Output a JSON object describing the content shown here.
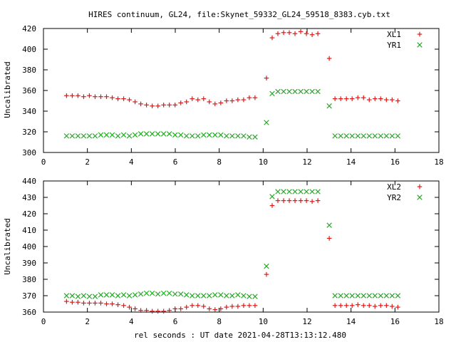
{
  "title": "HIRES continuum, GL24, file:Skynet_59332_GL24_59518_8383.cyb.txt",
  "xlabel": "rel seconds : UT date 2021-04-28T13:13:12.480",
  "colors": {
    "red": "#e01818",
    "green": "#2aa62a",
    "axis": "#000000"
  },
  "chart_data": [
    {
      "type": "scatter",
      "ylabel": "Uncalibrated",
      "xlim": [
        0,
        18
      ],
      "ylim": [
        300,
        420
      ],
      "xticks": [
        0,
        2,
        4,
        6,
        8,
        10,
        12,
        14,
        16,
        18
      ],
      "yticks": [
        300,
        320,
        340,
        360,
        380,
        400,
        420
      ],
      "legend_position": "top-right",
      "grid": false,
      "x": [
        1.05,
        1.31,
        1.57,
        1.83,
        2.09,
        2.35,
        2.61,
        2.87,
        3.13,
        3.39,
        3.65,
        3.91,
        4.17,
        4.43,
        4.69,
        4.95,
        5.21,
        5.47,
        5.73,
        5.99,
        6.25,
        6.51,
        6.77,
        7.03,
        7.29,
        7.55,
        7.81,
        8.07,
        8.33,
        8.59,
        8.85,
        9.11,
        9.37,
        9.63,
        9.89,
        10.15,
        10.41,
        10.67,
        10.93,
        11.19,
        11.45,
        11.71,
        11.97,
        12.23,
        12.49,
        12.75,
        13.01,
        13.27,
        13.53,
        13.79,
        14.05,
        14.31,
        14.57,
        14.83,
        15.09,
        15.35,
        15.61,
        15.87,
        16.13
      ],
      "series": [
        {
          "name": "XL1",
          "marker": "plus",
          "color": "#e01818",
          "values": [
            355,
            355,
            355,
            354,
            355,
            354,
            354,
            354,
            353,
            352,
            352,
            351,
            349,
            347,
            346,
            345,
            345,
            346,
            346,
            346,
            348,
            349,
            352,
            351,
            352,
            349,
            347,
            348,
            350,
            350,
            351,
            351,
            353,
            353,
            null,
            372,
            411,
            415,
            416,
            416,
            415,
            417,
            415,
            414,
            415,
            null,
            391,
            352,
            352,
            352,
            352,
            353,
            353,
            351,
            352,
            352,
            351,
            351,
            350
          ]
        },
        {
          "name": "YR1",
          "marker": "cross",
          "color": "#2aa62a",
          "values": [
            316,
            316,
            316,
            316,
            316,
            316,
            317,
            317,
            317,
            316,
            317,
            316,
            317,
            318,
            318,
            318,
            318,
            318,
            318,
            317,
            317,
            316,
            316,
            316,
            317,
            317,
            317,
            317,
            316,
            316,
            316,
            316,
            315,
            315,
            null,
            329,
            357,
            359,
            359,
            359,
            359,
            359,
            359,
            359,
            359,
            null,
            345,
            316,
            316,
            316,
            316,
            316,
            316,
            316,
            316,
            316,
            316,
            316,
            316
          ]
        }
      ]
    },
    {
      "type": "scatter",
      "ylabel": "Uncalibrated",
      "xlim": [
        0,
        18
      ],
      "ylim": [
        360,
        440
      ],
      "xticks": [
        0,
        2,
        4,
        6,
        8,
        10,
        12,
        14,
        16,
        18
      ],
      "yticks": [
        360,
        370,
        380,
        390,
        400,
        410,
        420,
        430,
        440
      ],
      "legend_position": "top-right",
      "grid": false,
      "x": [
        1.05,
        1.31,
        1.57,
        1.83,
        2.09,
        2.35,
        2.61,
        2.87,
        3.13,
        3.39,
        3.65,
        3.91,
        4.17,
        4.43,
        4.69,
        4.95,
        5.21,
        5.47,
        5.73,
        5.99,
        6.25,
        6.51,
        6.77,
        7.03,
        7.29,
        7.55,
        7.81,
        8.07,
        8.33,
        8.59,
        8.85,
        9.11,
        9.37,
        9.63,
        9.89,
        10.15,
        10.41,
        10.67,
        10.93,
        11.19,
        11.45,
        11.71,
        11.97,
        12.23,
        12.49,
        12.75,
        13.01,
        13.27,
        13.53,
        13.79,
        14.05,
        14.31,
        14.57,
        14.83,
        15.09,
        15.35,
        15.61,
        15.87,
        16.13
      ],
      "series": [
        {
          "name": "XL2",
          "marker": "plus",
          "color": "#e01818",
          "values": [
            366.5,
            366,
            366,
            365.5,
            365.5,
            365.5,
            365.5,
            365,
            365,
            364.5,
            364,
            363,
            362,
            361,
            361,
            360.5,
            360.5,
            360.5,
            361,
            362,
            362,
            363,
            364,
            364,
            363.5,
            362,
            361.5,
            362,
            363,
            363.5,
            363.5,
            364,
            364,
            364,
            null,
            383,
            425,
            428,
            428,
            428,
            428,
            428,
            428,
            427.5,
            428,
            null,
            405,
            364,
            364,
            364,
            364,
            364.5,
            364,
            364,
            363.5,
            364,
            364,
            363.5,
            363
          ]
        },
        {
          "name": "YR2",
          "marker": "cross",
          "color": "#2aa62a",
          "values": [
            370,
            370,
            369.5,
            370,
            369.5,
            369.5,
            370.5,
            370.5,
            370.5,
            370,
            370.5,
            370,
            370.5,
            371,
            371.5,
            371.5,
            371,
            371.5,
            371.5,
            371,
            371,
            370.5,
            370,
            370,
            370,
            370,
            370.5,
            370.5,
            370,
            370,
            370.5,
            370,
            369.5,
            369.5,
            null,
            388,
            430.5,
            433.5,
            433.5,
            433.5,
            433.5,
            433.5,
            433.5,
            433.5,
            433.5,
            null,
            413,
            370,
            370,
            370,
            370,
            370,
            370,
            370,
            370,
            370,
            370,
            370,
            370
          ]
        }
      ]
    }
  ]
}
